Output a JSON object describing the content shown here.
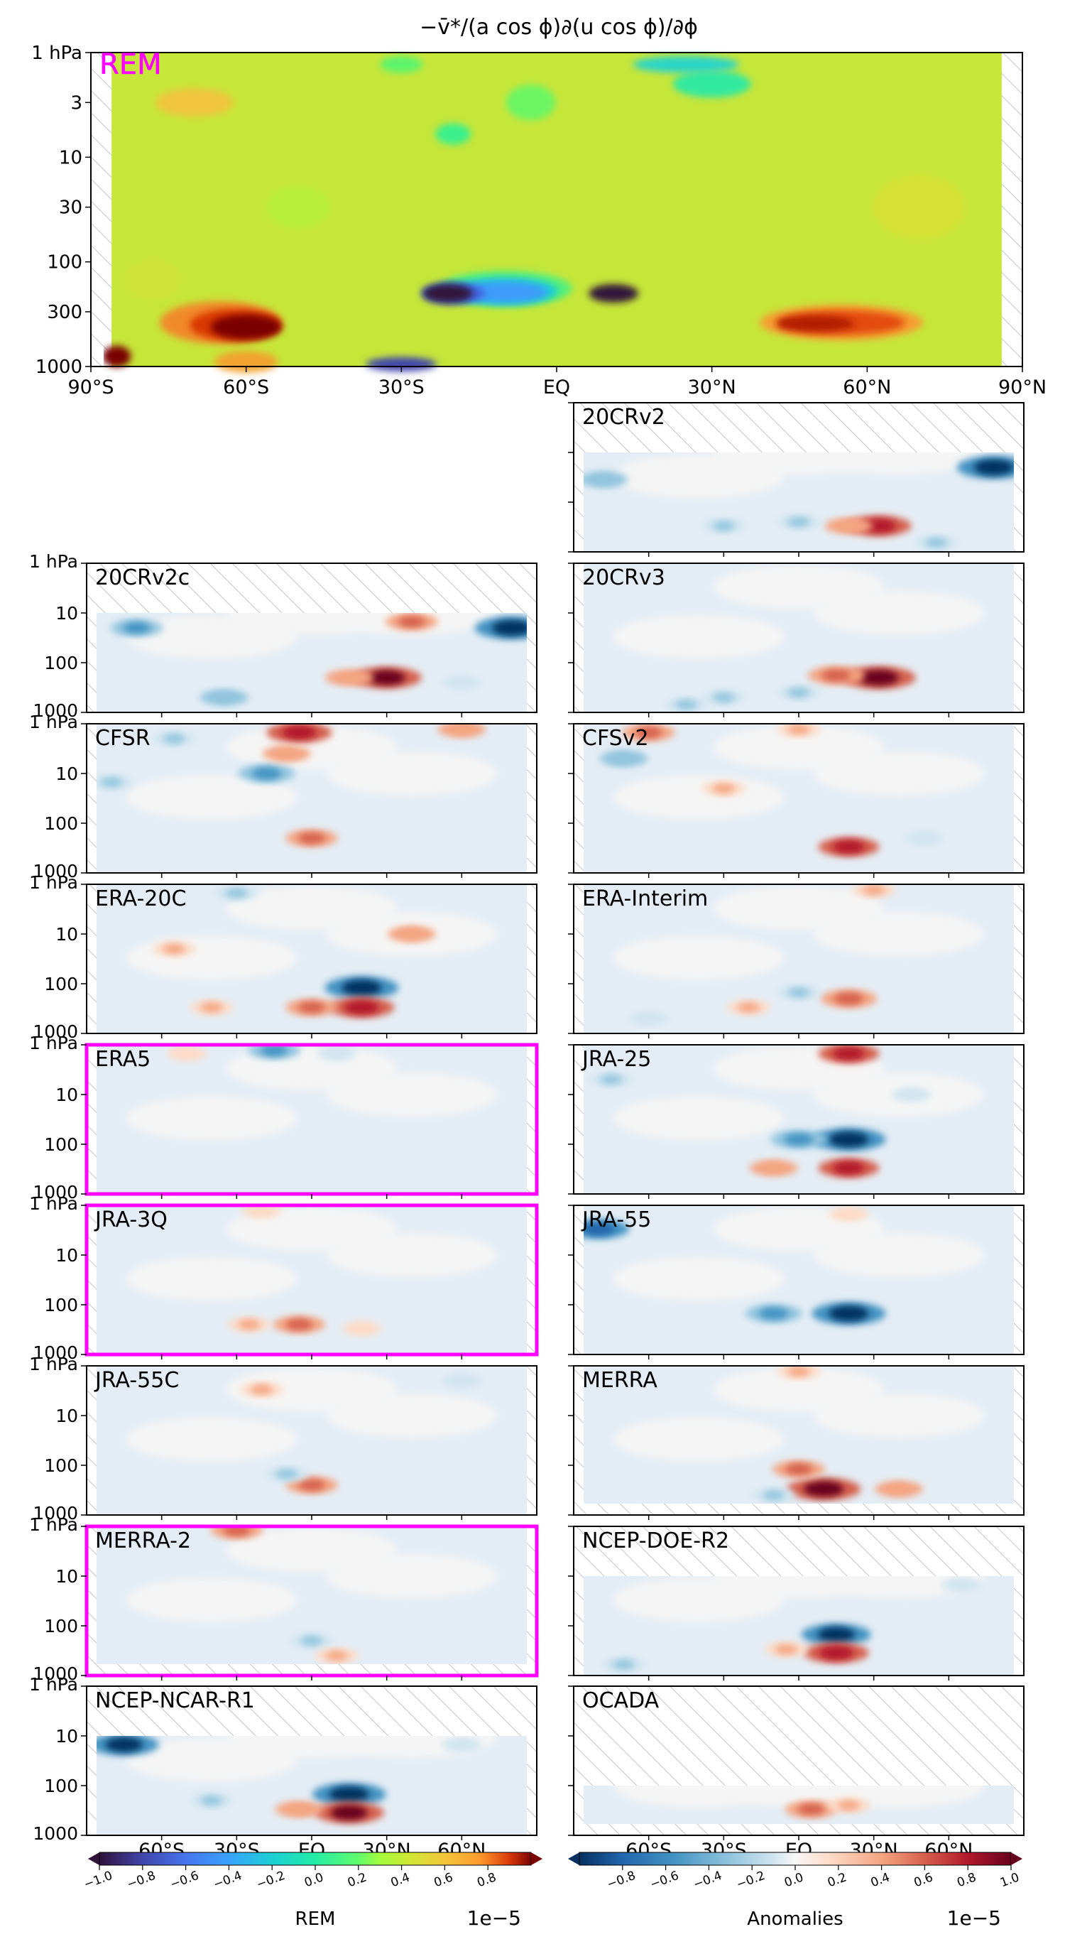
{
  "figure": {
    "title": "−v̄*/(a cos ϕ)∂(u cos ϕ)/∂ϕ",
    "colors": {
      "highlight": "#ff00ff",
      "hatch": "#bdbdbd",
      "frame": "#000000"
    }
  },
  "chart_data": {
    "type": "heatmap",
    "x_ticks_top": [
      "90°S",
      "60°S",
      "30°S",
      "EQ",
      "30°N",
      "60°N",
      "90°N"
    ],
    "x_ticks_bottom": [
      "60°S",
      "30°S",
      "EQ",
      "30°N",
      "60°N"
    ],
    "y_ticks_main": [
      "1 hPa",
      "3",
      "10",
      "30",
      "100",
      "300",
      "1000"
    ],
    "y_ticks_panel": [
      "1 hPa",
      "10",
      "100",
      "1000"
    ],
    "y_range_hPa": [
      1000,
      1
    ],
    "x_range_deg": [
      -90,
      90
    ],
    "main_panel": {
      "label": "REM",
      "label_color": "#ff00ff",
      "features": [
        {
          "kind": "strong negative",
          "lat": -20,
          "p": 200
        },
        {
          "kind": "strong negative",
          "lat": 10,
          "p": 200
        },
        {
          "kind": "strong positive",
          "lat": -60,
          "p": 400
        },
        {
          "kind": "positive",
          "lat": 55,
          "p": 350
        }
      ]
    },
    "panels": [
      {
        "label": "20CRv2",
        "top_hPa": 10,
        "highlight": false,
        "blobs": [
          [
            -78,
            35,
            -0.4
          ],
          [
            78,
            20,
            -1.0
          ],
          [
            32,
            300,
            0.8
          ],
          [
            20,
            300,
            0.4
          ],
          [
            -30,
            300,
            -0.3
          ],
          [
            0,
            250,
            -0.3
          ],
          [
            55,
            650,
            -0.3
          ]
        ]
      },
      {
        "label": "20CRv2c",
        "top_hPa": 10,
        "highlight": false,
        "blobs": [
          [
            -70,
            20,
            -0.5
          ],
          [
            80,
            20,
            -1.0
          ],
          [
            40,
            15,
            0.5
          ],
          [
            30,
            200,
            0.9
          ],
          [
            15,
            200,
            0.4
          ],
          [
            -35,
            500,
            -0.4
          ],
          [
            60,
            250,
            -0.2
          ]
        ]
      },
      {
        "label": "20CRv3",
        "top_hPa": 1,
        "highlight": false,
        "blobs": [
          [
            32,
            200,
            1.0
          ],
          [
            15,
            180,
            0.6
          ],
          [
            -30,
            500,
            -0.3
          ],
          [
            0,
            400,
            -0.3
          ],
          [
            -45,
            700,
            -0.3
          ]
        ]
      },
      {
        "label": "CFSR",
        "top_hPa": 1,
        "highlight": false,
        "blobs": [
          [
            -5,
            1.5,
            0.8
          ],
          [
            -18,
            10,
            -0.6
          ],
          [
            -10,
            4,
            0.4
          ],
          [
            -55,
            2,
            -0.3
          ],
          [
            60,
            1.3,
            0.4
          ],
          [
            0,
            200,
            0.5
          ],
          [
            -80,
            15,
            -0.3
          ]
        ]
      },
      {
        "label": "CFSv2",
        "top_hPa": 1,
        "highlight": false,
        "blobs": [
          [
            -60,
            1.5,
            0.5
          ],
          [
            -70,
            5,
            -0.4
          ],
          [
            -30,
            20,
            0.3
          ],
          [
            20,
            300,
            0.7
          ],
          [
            0,
            1.3,
            0.3
          ],
          [
            50,
            200,
            -0.2
          ]
        ]
      },
      {
        "label": "ERA-20C",
        "top_hPa": 1,
        "highlight": false,
        "blobs": [
          [
            20,
            120,
            -1.0
          ],
          [
            20,
            300,
            0.8
          ],
          [
            0,
            300,
            0.5
          ],
          [
            -40,
            300,
            0.3
          ],
          [
            40,
            10,
            0.4
          ],
          [
            -30,
            1.5,
            -0.3
          ],
          [
            -55,
            20,
            0.3
          ]
        ]
      },
      {
        "label": "ERA-Interim",
        "top_hPa": 1,
        "highlight": false,
        "blobs": [
          [
            20,
            200,
            0.6
          ],
          [
            0,
            150,
            -0.3
          ],
          [
            -20,
            300,
            0.3
          ],
          [
            30,
            1.3,
            0.3
          ],
          [
            -60,
            500,
            -0.2
          ]
        ]
      },
      {
        "label": "ERA5",
        "top_hPa": 1,
        "highlight": true,
        "blobs": [
          [
            -15,
            1.3,
            -0.5
          ],
          [
            -50,
            1.5,
            0.2
          ],
          [
            10,
            1.5,
            -0.2
          ]
        ]
      },
      {
        "label": "JRA-25",
        "top_hPa": 1,
        "highlight": false,
        "blobs": [
          [
            20,
            80,
            -1.0
          ],
          [
            0,
            80,
            -0.6
          ],
          [
            20,
            300,
            0.7
          ],
          [
            -10,
            300,
            0.4
          ],
          [
            20,
            1.5,
            0.7
          ],
          [
            -75,
            5,
            -0.3
          ],
          [
            45,
            10,
            -0.2
          ]
        ]
      },
      {
        "label": "JRA-3Q",
        "top_hPa": 1,
        "highlight": true,
        "blobs": [
          [
            -5,
            250,
            0.5
          ],
          [
            -25,
            250,
            0.3
          ],
          [
            -20,
            1.3,
            0.2
          ],
          [
            20,
            300,
            0.2
          ]
        ]
      },
      {
        "label": "JRA-55",
        "top_hPa": 1,
        "highlight": false,
        "blobs": [
          [
            -80,
            3,
            -0.7
          ],
          [
            20,
            150,
            -1.0
          ],
          [
            -10,
            150,
            -0.6
          ],
          [
            20,
            1.5,
            0.2
          ]
        ]
      },
      {
        "label": "JRA-55C",
        "top_hPa": 1,
        "highlight": false,
        "blobs": [
          [
            0,
            250,
            0.5
          ],
          [
            -10,
            150,
            -0.3
          ],
          [
            -20,
            3,
            0.3
          ],
          [
            60,
            2,
            -0.2
          ]
        ]
      },
      {
        "label": "MERRA",
        "top_hPa": 1,
        "highlight": false,
        "blobs": [
          [
            10,
            300,
            1.0
          ],
          [
            0,
            120,
            0.5
          ],
          [
            -10,
            400,
            -0.3
          ],
          [
            40,
            300,
            0.4
          ],
          [
            0,
            1.3,
            0.3
          ]
        ]
      },
      {
        "label": "MERRA-2",
        "top_hPa": 1,
        "highlight": true,
        "blobs": [
          [
            -30,
            1.2,
            0.5
          ],
          [
            0,
            200,
            -0.3
          ],
          [
            10,
            400,
            0.3
          ]
        ]
      },
      {
        "label": "NCEP-DOE-R2",
        "top_hPa": 10,
        "highlight": false,
        "blobs": [
          [
            15,
            150,
            -0.9
          ],
          [
            15,
            350,
            0.8
          ],
          [
            -5,
            300,
            0.3
          ],
          [
            -70,
            600,
            -0.3
          ],
          [
            65,
            15,
            -0.2
          ]
        ]
      },
      {
        "label": "NCEP-NCAR-R1",
        "top_hPa": 10,
        "highlight": false,
        "blobs": [
          [
            -75,
            15,
            -0.9
          ],
          [
            15,
            150,
            -1.0
          ],
          [
            15,
            350,
            0.9
          ],
          [
            -5,
            300,
            0.4
          ],
          [
            60,
            15,
            -0.2
          ],
          [
            -40,
            200,
            -0.3
          ]
        ]
      },
      {
        "label": "OCADA",
        "top_hPa": 100,
        "highlight": false,
        "blobs": [
          [
            5,
            300,
            0.5
          ],
          [
            20,
            250,
            0.3
          ]
        ]
      }
    ],
    "colorbar_left": {
      "label": "REM",
      "exponent": "1e−5",
      "ticks": [
        "−1.0",
        "−0.8",
        "−0.6",
        "−0.4",
        "−0.2",
        "0.0",
        "0.2",
        "0.4",
        "0.6",
        "0.8"
      ],
      "range": [
        -1.0,
        1.0
      ]
    },
    "colorbar_right": {
      "label": "Anomalies",
      "exponent": "1e−5",
      "ticks": [
        "−0.8",
        "−0.6",
        "−0.4",
        "−0.2",
        "0.0",
        "0.2",
        "0.4",
        "0.6",
        "0.8",
        "1.0"
      ],
      "range": [
        -1.0,
        1.0
      ]
    }
  }
}
